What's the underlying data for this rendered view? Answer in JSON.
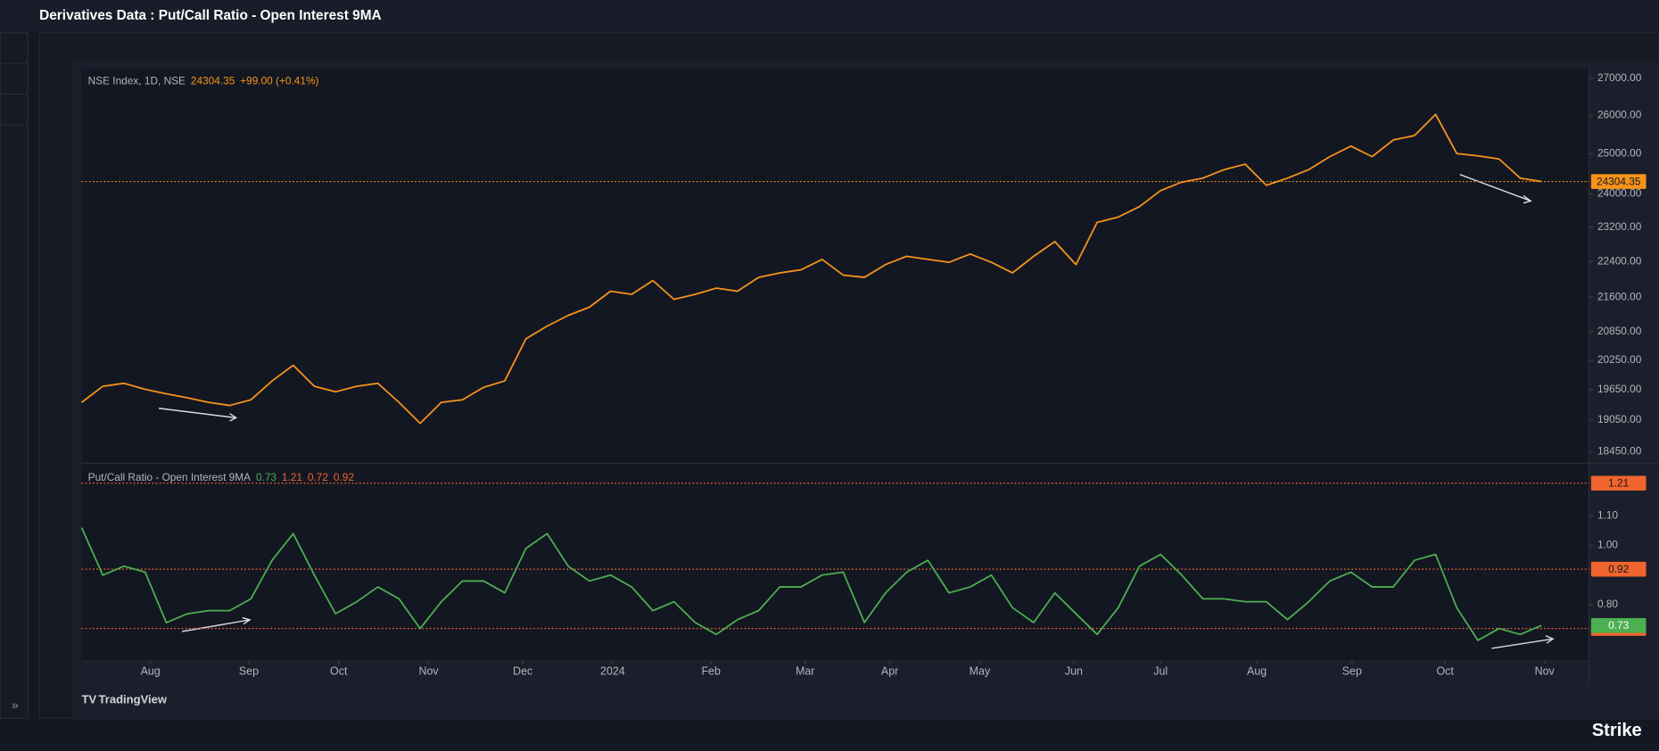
{
  "header": {
    "title": "Derivatives Data : Put/Call Ratio - Open Interest 9MA"
  },
  "footer": {
    "logo_text": "TradingView",
    "brand": "Strike"
  },
  "chart_data": [
    {
      "type": "line",
      "log": true,
      "grid": false,
      "legend": "NSE Index, 1D, NSE",
      "change_label": "+99.00 (+0.41%)",
      "series": [
        {
          "name": "NSE Index, 1D, NSE",
          "color": "#f7931a",
          "values": [
            19400,
            19720,
            19780,
            19660,
            19570,
            19490,
            19400,
            19340,
            19450,
            19830,
            20150,
            19720,
            19610,
            19720,
            19780,
            19400,
            18990,
            19400,
            19450,
            19700,
            19830,
            20700,
            20970,
            21200,
            21380,
            21730,
            21660,
            21970,
            21550,
            21660,
            21800,
            21730,
            22040,
            22140,
            22210,
            22450,
            22090,
            22040,
            22330,
            22520,
            22450,
            22380,
            22570,
            22380,
            22140,
            22520,
            22860,
            22330,
            23310,
            23440,
            23690,
            24080,
            24290,
            24390,
            24600,
            24740,
            24210,
            24390,
            24600,
            24930,
            25200,
            24930,
            25360,
            25470,
            26030,
            25010,
            24950,
            24870,
            24390,
            24304.35
          ]
        }
      ],
      "xlim": [
        0,
        71.25
      ],
      "ylim": [
        18250,
        27270
      ],
      "yticks": [
        {
          "value": 27000,
          "label": "27000.00"
        },
        {
          "value": 26000,
          "label": "26000.00"
        },
        {
          "value": 25000,
          "label": "25000.00"
        },
        {
          "value": 24000,
          "label": "24000.00"
        },
        {
          "value": 23200,
          "label": "23200.00"
        },
        {
          "value": 22400,
          "label": "22400.00"
        },
        {
          "value": 21600,
          "label": "21600.00"
        },
        {
          "value": 20850,
          "label": "20850.00"
        },
        {
          "value": 20250,
          "label": "20250.00"
        },
        {
          "value": 19650,
          "label": "19650.00"
        },
        {
          "value": 19050,
          "label": "19050.00"
        },
        {
          "value": 18450,
          "label": "18450.00"
        }
      ]
    },
    {
      "type": "line",
      "log": false,
      "grid": false,
      "legend": "Put/Call Ratio - Open Interest 9MA",
      "series": [
        {
          "name": "Put/Call Ratio - Open Interest 9MA",
          "color": "#4caf50",
          "values": [
            1.06,
            0.9,
            0.93,
            0.91,
            0.74,
            0.77,
            0.78,
            0.78,
            0.82,
            0.95,
            1.04,
            0.9,
            0.77,
            0.81,
            0.86,
            0.82,
            0.72,
            0.81,
            0.88,
            0.88,
            0.84,
            0.99,
            1.04,
            0.93,
            0.88,
            0.9,
            0.86,
            0.78,
            0.81,
            0.74,
            0.7,
            0.75,
            0.78,
            0.86,
            0.86,
            0.9,
            0.91,
            0.74,
            0.84,
            0.91,
            0.95,
            0.84,
            0.86,
            0.9,
            0.79,
            0.74,
            0.84,
            0.77,
            0.7,
            0.79,
            0.93,
            0.97,
            0.9,
            0.82,
            0.82,
            0.81,
            0.81,
            0.75,
            0.81,
            0.88,
            0.91,
            0.86,
            0.86,
            0.95,
            0.97,
            0.79,
            0.68,
            0.72,
            0.7,
            0.73
          ]
        }
      ],
      "levels": [
        1.21,
        0.72,
        0.92
      ],
      "level_color": "#f0642d",
      "xlim": [
        0,
        71.25
      ],
      "ylim": [
        0.61,
        1.27
      ],
      "yticks": [
        {
          "value": 1.1,
          "label": "1.10"
        },
        {
          "value": 1,
          "label": "1.00"
        },
        {
          "value": 0.8,
          "label": "0.80"
        }
      ],
      "xticks": [
        {
          "value": 3.25,
          "label": "Aug"
        },
        {
          "value": 7.9,
          "label": "Sep"
        },
        {
          "value": 12.15,
          "label": "Oct"
        },
        {
          "value": 16.4,
          "label": "Nov"
        },
        {
          "value": 20.85,
          "label": "Dec"
        },
        {
          "value": 25.1,
          "label": "2024"
        },
        {
          "value": 29.75,
          "label": "Feb"
        },
        {
          "value": 34.2,
          "label": "Mar"
        },
        {
          "value": 38.2,
          "label": "Apr"
        },
        {
          "value": 42.45,
          "label": "May"
        },
        {
          "value": 46.9,
          "label": "Jun"
        },
        {
          "value": 51,
          "label": "Jul"
        },
        {
          "value": 55.55,
          "label": "Aug"
        },
        {
          "value": 60.05,
          "label": "Sep"
        },
        {
          "value": 64.45,
          "label": "Oct"
        },
        {
          "value": 69.15,
          "label": "Nov"
        }
      ]
    }
  ]
}
